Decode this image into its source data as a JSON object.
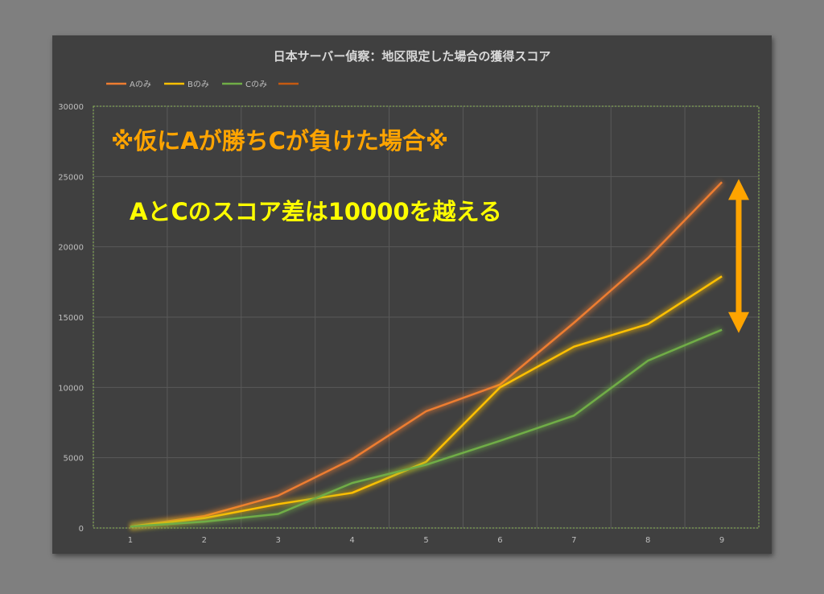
{
  "chart_data": {
    "type": "line",
    "title": "日本サーバー偵察：地区限定した場合の獲得スコア",
    "x": [
      1,
      2,
      3,
      4,
      5,
      6,
      7,
      8,
      9
    ],
    "ylim": [
      0,
      30000
    ],
    "yticks": [
      0,
      5000,
      10000,
      15000,
      20000,
      25000,
      30000
    ],
    "grid": true,
    "legend_position": "top-left",
    "series": [
      {
        "name": "Aのみ",
        "color": "#ed7d31",
        "values": [
          100,
          850,
          2300,
          4900,
          8300,
          10200,
          14600,
          19200,
          24600
        ]
      },
      {
        "name": "Bのみ",
        "color": "#ffc000",
        "values": [
          100,
          700,
          1700,
          2500,
          4700,
          10000,
          12900,
          14500,
          17900
        ]
      },
      {
        "name": "Cのみ",
        "color": "#70ad47",
        "values": [
          100,
          450,
          1000,
          3200,
          4500,
          6200,
          8000,
          11900,
          14100
        ]
      }
    ],
    "legend_extra": {
      "name": "",
      "color": "#c55a11"
    },
    "annotations": [
      {
        "text": "※仮にAが勝ちCが負けた場合※",
        "color": "#ffa400"
      },
      {
        "text": "AとCのスコア差は10000を越える",
        "color": "#ffff00"
      }
    ],
    "arrow": {
      "color": "#ffa400",
      "from": 24600,
      "to": 14100
    }
  }
}
